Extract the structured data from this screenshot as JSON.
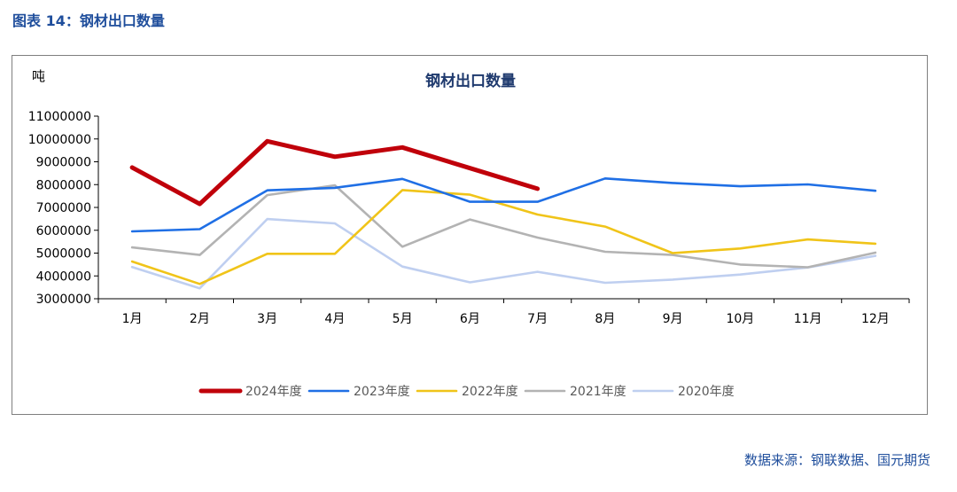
{
  "figure_caption": "图表 14：钢材出口数量",
  "source_note": "数据来源：钢联数据、国元期货",
  "colors": {
    "s2024": "#c0000a",
    "s2023": "#1f6fe5",
    "s2022": "#f0c419",
    "s2021": "#b3b3b3",
    "s2020": "#bfcff0",
    "axis": "#000000",
    "caption": "#1f4e9c"
  },
  "chart_data": {
    "type": "line",
    "title": "钢材出口数量",
    "ylabel": "吨",
    "xlabel": "",
    "grid": false,
    "legend_position": "bottom",
    "categories": [
      "1月",
      "2月",
      "3月",
      "4月",
      "5月",
      "6月",
      "7月",
      "8月",
      "9月",
      "10月",
      "11月",
      "12月"
    ],
    "ylim": [
      3000000,
      11000000
    ],
    "yticks": [
      "11000000",
      "10000000",
      "9000000",
      "8000000",
      "7000000",
      "6000000",
      "5000000",
      "4000000",
      "3000000"
    ],
    "series": [
      {
        "name": "2024年度",
        "values": [
          8750000,
          7150000,
          9900000,
          9220000,
          9630000,
          8720000,
          7820000,
          null,
          null,
          null,
          null,
          null
        ]
      },
      {
        "name": "2023年度",
        "values": [
          5950000,
          6050000,
          7750000,
          7860000,
          8250000,
          7250000,
          7250000,
          8270000,
          8070000,
          7930000,
          8010000,
          7730000
        ]
      },
      {
        "name": "2022年度",
        "values": [
          4630000,
          3650000,
          4970000,
          4970000,
          7760000,
          7560000,
          6690000,
          6160000,
          5000000,
          5200000,
          5600000,
          5410000
        ]
      },
      {
        "name": "2021年度",
        "values": [
          5250000,
          4920000,
          7540000,
          7970000,
          5280000,
          6470000,
          5680000,
          5060000,
          4920000,
          4500000,
          4380000,
          5020000
        ]
      },
      {
        "name": "2020年度",
        "values": [
          4390000,
          3460000,
          6490000,
          6300000,
          4410000,
          3720000,
          4180000,
          3700000,
          3840000,
          4060000,
          4370000,
          4880000
        ]
      }
    ]
  }
}
